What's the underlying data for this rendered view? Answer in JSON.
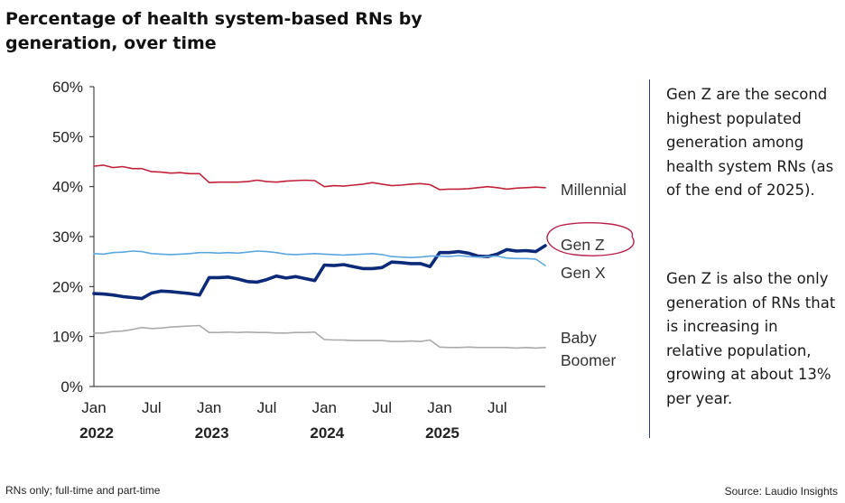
{
  "chart_data": {
    "type": "line",
    "title": "Percentage of health system-based RNs by generation, over time",
    "ylim": [
      0,
      60
    ],
    "yticks": [
      0,
      10,
      20,
      30,
      40,
      50,
      60
    ],
    "ytick_labels": [
      "0%",
      "10%",
      "20%",
      "30%",
      "40%",
      "50%",
      "60%"
    ],
    "x_range": [
      "2022-01",
      "2025-12"
    ],
    "xtick_labels": [
      {
        "month": "Jan",
        "year": "2022",
        "x": "2022-01"
      },
      {
        "month": "Jul",
        "year": "",
        "x": "2022-07"
      },
      {
        "month": "Jan",
        "year": "2023",
        "x": "2023-01"
      },
      {
        "month": "Jul",
        "year": "",
        "x": "2023-07"
      },
      {
        "month": "Jan",
        "year": "2024",
        "x": "2024-01"
      },
      {
        "month": "Jul",
        "year": "",
        "x": "2024-07"
      },
      {
        "month": "Jan",
        "year": "2025",
        "x": "2025-01"
      },
      {
        "month": "Jul",
        "year": "",
        "x": "2025-07"
      }
    ],
    "x": [
      "2022-01",
      "2022-02",
      "2022-03",
      "2022-04",
      "2022-05",
      "2022-06",
      "2022-07",
      "2022-08",
      "2022-09",
      "2022-10",
      "2022-11",
      "2022-12",
      "2023-01",
      "2023-02",
      "2023-03",
      "2023-04",
      "2023-05",
      "2023-06",
      "2023-07",
      "2023-08",
      "2023-09",
      "2023-10",
      "2023-11",
      "2023-12",
      "2024-01",
      "2024-02",
      "2024-03",
      "2024-04",
      "2024-05",
      "2024-06",
      "2024-07",
      "2024-08",
      "2024-09",
      "2024-10",
      "2024-11",
      "2024-12",
      "2025-01",
      "2025-02",
      "2025-03",
      "2025-04",
      "2025-05",
      "2025-06",
      "2025-07",
      "2025-08",
      "2025-09",
      "2025-10",
      "2025-11",
      "2025-12"
    ],
    "series": [
      {
        "name": "Millennial",
        "color": "#c0223b",
        "emphasis": false,
        "values": [
          44.1,
          44.3,
          43.8,
          44.0,
          43.6,
          43.6,
          43.0,
          42.9,
          42.7,
          42.8,
          42.6,
          42.6,
          40.8,
          40.9,
          40.9,
          40.9,
          41.0,
          41.3,
          41.0,
          40.9,
          41.1,
          41.2,
          41.3,
          41.2,
          40.0,
          40.2,
          40.1,
          40.3,
          40.5,
          40.8,
          40.5,
          40.2,
          40.3,
          40.5,
          40.6,
          40.4,
          39.4,
          39.5,
          39.5,
          39.6,
          39.8,
          40.0,
          39.8,
          39.5,
          39.7,
          39.8,
          39.9,
          39.8
        ]
      },
      {
        "name": "Gen Z",
        "color": "#0d2a78",
        "emphasis": true,
        "values": [
          18.6,
          18.5,
          18.3,
          18.0,
          17.8,
          17.6,
          18.7,
          19.1,
          19.0,
          18.8,
          18.6,
          18.3,
          21.8,
          21.8,
          21.9,
          21.5,
          21.0,
          20.9,
          21.4,
          22.1,
          21.7,
          22.0,
          21.6,
          21.2,
          24.3,
          24.2,
          24.4,
          24.0,
          23.6,
          23.6,
          23.8,
          24.9,
          24.8,
          24.6,
          24.6,
          24.0,
          26.8,
          26.8,
          27.0,
          26.7,
          26.1,
          26.0,
          26.5,
          27.4,
          27.1,
          27.2,
          27.0,
          28.2
        ]
      },
      {
        "name": "Gen X",
        "color": "#5aa7de",
        "emphasis": false,
        "values": [
          26.6,
          26.5,
          26.8,
          26.9,
          27.1,
          27.0,
          26.6,
          26.5,
          26.4,
          26.5,
          26.6,
          26.8,
          26.8,
          26.7,
          26.8,
          26.7,
          26.9,
          27.1,
          27.0,
          26.8,
          26.5,
          26.4,
          26.5,
          26.6,
          26.5,
          26.4,
          26.3,
          26.4,
          26.5,
          26.6,
          26.4,
          26.0,
          25.9,
          25.8,
          25.9,
          26.1,
          26.1,
          26.0,
          26.2,
          26.0,
          25.9,
          26.0,
          26.1,
          25.7,
          25.6,
          25.6,
          25.5,
          24.2
        ]
      },
      {
        "name": "Baby Boomer",
        "color": "#aaaaaa",
        "emphasis": false,
        "values": [
          10.7,
          10.7,
          11.0,
          11.1,
          11.4,
          11.8,
          11.6,
          11.7,
          11.9,
          12.0,
          12.1,
          12.2,
          10.8,
          10.8,
          10.9,
          10.8,
          10.9,
          10.8,
          10.8,
          10.7,
          10.7,
          10.8,
          10.8,
          10.9,
          9.4,
          9.3,
          9.3,
          9.2,
          9.2,
          9.2,
          9.2,
          9.0,
          9.0,
          9.1,
          9.0,
          9.3,
          7.9,
          7.8,
          7.8,
          7.9,
          7.8,
          7.8,
          7.8,
          7.8,
          7.7,
          7.8,
          7.7,
          7.8
        ]
      }
    ],
    "series_labels": [
      "Millennial",
      "Gen Z",
      "Gen X",
      "Baby",
      "Boomer"
    ],
    "highlight": "Gen Z",
    "grid": false,
    "legend": "direct labels at right"
  },
  "commentary": {
    "paragraph1": "Gen Z are the second highest populated generation among health system RNs (as of the end of 2025).",
    "paragraph2": "Gen Z is also the only generation of RNs that is increasing in relative population, growing at about 13% per year."
  },
  "footer": {
    "note": "RNs only; full-time and part-time",
    "source": "Source: Laudio Insights"
  }
}
